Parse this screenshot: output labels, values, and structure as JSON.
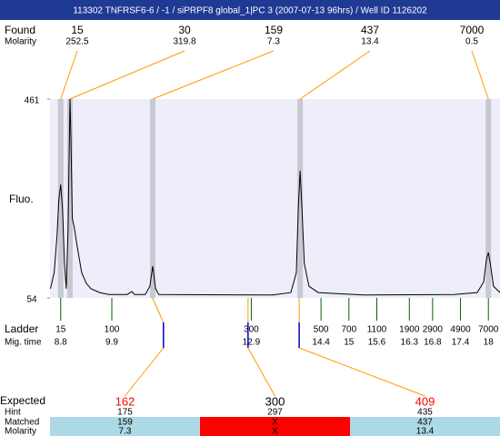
{
  "chart_data": {
    "type": "line",
    "title": "113302  TNFRSF6-6 / -1 / siPRPF8 global_1|PC 3 (2007-07-13 96hrs) / Well ID 1126202",
    "y_label": "Fluo.",
    "ylim": [
      54,
      461
    ],
    "yticks": [
      54,
      461
    ],
    "xlim": [
      8.57,
      18.25
    ],
    "color": "#000000",
    "background": "#eeeefa",
    "x": [
      8.58,
      8.66,
      8.72,
      8.76,
      8.8,
      8.84,
      8.88,
      8.92,
      8.96,
      9.0,
      9.02,
      9.05,
      9.09,
      9.15,
      9.25,
      9.35,
      9.45,
      9.64,
      9.84,
      10.23,
      10.33,
      10.39,
      10.62,
      10.72,
      10.78,
      10.84,
      10.91,
      13.36,
      13.75,
      13.87,
      13.91,
      13.95,
      13.99,
      14.04,
      14.14,
      14.34,
      15.32,
      17.27,
      17.76,
      17.9,
      17.96,
      18.0,
      18.04,
      18.11,
      18.25
    ],
    "values": [
      73,
      106,
      180,
      255,
      286,
      236,
      125,
      73,
      199,
      461,
      385,
      218,
      199,
      162,
      106,
      84,
      73,
      65,
      61,
      61,
      67,
      61,
      61,
      78,
      119,
      73,
      61,
      60,
      65,
      106,
      236,
      314,
      236,
      125,
      78,
      65,
      60,
      61,
      65,
      87,
      134,
      147,
      125,
      78,
      65
    ],
    "found": {
      "label": "Found",
      "sublabel": "Molarity",
      "color": "#ff9900",
      "band_color": "#c8c8d2",
      "sizes": [
        15,
        30,
        159,
        437,
        7000
      ],
      "molarity": [
        252.5,
        319.8,
        7.3,
        13.4,
        0.5
      ],
      "times": [
        8.8,
        9.0,
        10.78,
        13.95,
        18.0
      ]
    },
    "ladder": {
      "label": "Ladder",
      "sublabel": "Mig. time",
      "color": "#006600",
      "sizes": [
        15,
        100,
        300,
        500,
        700,
        1100,
        1900,
        2900,
        4900,
        7000
      ],
      "times": [
        8.8,
        9.9,
        12.9,
        14.4,
        15,
        15.6,
        16.3,
        16.8,
        17.4,
        18
      ]
    },
    "expected": {
      "label": "Expected",
      "marker_color": "#0000cc",
      "sizes": [
        162,
        300,
        409
      ],
      "colors": [
        "#ff0000",
        "#000000",
        "#ff0000"
      ],
      "times": [
        11.01,
        12.83,
        13.93
      ],
      "hint_label": "Hint",
      "hint": [
        175,
        297,
        435
      ],
      "matched_label": "Matched",
      "matched": [
        159,
        "X",
        437
      ],
      "molarity_label": "Molarity",
      "molarity": [
        7.3,
        "X",
        13.4
      ],
      "cell_colors": [
        "#add8e6",
        "#ff0000",
        "#add8e6"
      ]
    }
  }
}
